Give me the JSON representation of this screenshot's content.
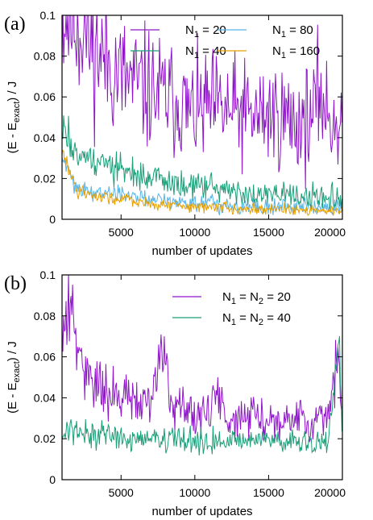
{
  "chart_data": [
    {
      "type": "line",
      "panel_label": "(a)",
      "xlabel": "number of updates",
      "ylabel": "(E - E_exact) / J",
      "ylabel_parts": {
        "pre": "(E - E",
        "sub": "exact",
        "post": ") / J"
      },
      "xlim": [
        1000,
        20000
      ],
      "ylim": [
        0,
        0.1
      ],
      "xticks": [
        5000,
        10000,
        15000,
        20000
      ],
      "xtick_labels": [
        "5000",
        "10000",
        "15000",
        "20000"
      ],
      "yticks": [
        0,
        0.02,
        0.04,
        0.06,
        0.08,
        0.1
      ],
      "ytick_labels": [
        "0",
        "0.02",
        "0.04",
        "0.06",
        "0.08",
        "0.1"
      ],
      "legend_position": "top-right, two columns",
      "series": [
        {
          "name": "N1 = 20",
          "label_parts": {
            "pre": "N",
            "sub": "1",
            "post": " = 20"
          },
          "color": "#8f16c8",
          "x": [
            1000,
            1500,
            2000,
            2500,
            3000,
            3500,
            4000,
            5000,
            6000,
            7000,
            8000,
            9000,
            9500,
            10000,
            11000,
            12000,
            13000,
            14000,
            15000,
            16000,
            17000,
            18000,
            18500,
            19000,
            20000
          ],
          "y": [
            0.1,
            0.1,
            0.097,
            0.093,
            0.085,
            0.082,
            0.078,
            0.07,
            0.066,
            0.063,
            0.06,
            0.058,
            0.053,
            0.052,
            0.055,
            0.053,
            0.052,
            0.05,
            0.052,
            0.05,
            0.047,
            0.05,
            0.064,
            0.05,
            0.048
          ]
        },
        {
          "name": "N1 = 80",
          "label_parts": {
            "pre": "N",
            "sub": "1",
            "post": " = 80"
          },
          "color": "#56b4e9",
          "x": [
            1000,
            2000,
            3000,
            4000,
            5000,
            6000,
            7000,
            8000,
            9000,
            10000,
            11000,
            12000,
            13000,
            14000,
            15000,
            16000,
            17000,
            18000,
            19000,
            20000
          ],
          "y": [
            0.03,
            0.016,
            0.014,
            0.013,
            0.012,
            0.011,
            0.01,
            0.009,
            0.009,
            0.008,
            0.008,
            0.007,
            0.007,
            0.007,
            0.006,
            0.006,
            0.006,
            0.006,
            0.006,
            0.006
          ]
        },
        {
          "name": "N1 = 40",
          "label_parts": {
            "pre": "N",
            "sub": "1",
            "post": " = 40"
          },
          "color": "#1a9e77",
          "x": [
            1000,
            1500,
            2000,
            3000,
            4000,
            5000,
            6000,
            7000,
            8000,
            9000,
            10000,
            11000,
            12000,
            13000,
            14000,
            15000,
            16000,
            17000,
            18000,
            19000,
            20000
          ],
          "y": [
            0.045,
            0.038,
            0.035,
            0.03,
            0.027,
            0.024,
            0.021,
            0.02,
            0.018,
            0.017,
            0.016,
            0.015,
            0.014,
            0.013,
            0.012,
            0.012,
            0.011,
            0.011,
            0.01,
            0.01,
            0.009
          ]
        },
        {
          "name": "N1 = 160",
          "label_parts": {
            "pre": "N",
            "sub": "1",
            "post": " = 160"
          },
          "color": "#e69f00",
          "x": [
            1000,
            2000,
            3000,
            4000,
            5000,
            6000,
            7000,
            8000,
            9000,
            10000,
            11000,
            12000,
            13000,
            14000,
            15000,
            16000,
            17000,
            18000,
            19000,
            20000
          ],
          "y": [
            0.034,
            0.014,
            0.012,
            0.011,
            0.01,
            0.009,
            0.008,
            0.007,
            0.007,
            0.006,
            0.006,
            0.006,
            0.005,
            0.005,
            0.005,
            0.005,
            0.005,
            0.004,
            0.004,
            0.004
          ]
        }
      ]
    },
    {
      "type": "line",
      "panel_label": "(b)",
      "xlabel": "number of updates",
      "ylabel": "(E - E_exact) / J",
      "ylabel_parts": {
        "pre": "(E - E",
        "sub": "exact",
        "post": ") / J"
      },
      "xlim": [
        1000,
        20000
      ],
      "ylim": [
        0,
        0.1
      ],
      "xticks": [
        5000,
        10000,
        15000,
        20000
      ],
      "xtick_labels": [
        "5000",
        "10000",
        "15000",
        "20000"
      ],
      "yticks": [
        0,
        0.02,
        0.04,
        0.06,
        0.08,
        0.1
      ],
      "ytick_labels": [
        "0",
        "0.02",
        "0.04",
        "0.06",
        "0.08",
        "0.1"
      ],
      "legend_position": "top-right",
      "series": [
        {
          "name": "N1 = N2 = 20",
          "label_parts": {
            "pre": "N",
            "sub": "1",
            "mid": " = N",
            "sub2": "2",
            "post": " = 20"
          },
          "color": "#8f16c8",
          "x": [
            1000,
            1300,
            1700,
            2000,
            2500,
            3000,
            3500,
            4000,
            5000,
            6000,
            7000,
            7900,
            8500,
            9000,
            10000,
            11000,
            11500,
            12000,
            13000,
            14000,
            15000,
            16000,
            17000,
            18000,
            19000,
            19700,
            20000
          ],
          "y": [
            0.072,
            0.08,
            0.088,
            0.06,
            0.056,
            0.05,
            0.045,
            0.042,
            0.04,
            0.038,
            0.036,
            0.068,
            0.034,
            0.033,
            0.032,
            0.031,
            0.045,
            0.031,
            0.03,
            0.031,
            0.03,
            0.03,
            0.03,
            0.029,
            0.029,
            0.06,
            0.027
          ]
        },
        {
          "name": "N1 = N2 = 40",
          "label_parts": {
            "pre": "N",
            "sub": "1",
            "mid": " = N",
            "sub2": "2",
            "post": " = 40"
          },
          "color": "#1a9e77",
          "x": [
            1000,
            1500,
            2000,
            3000,
            4000,
            5000,
            6000,
            7000,
            8000,
            9000,
            10000,
            11000,
            12000,
            13000,
            14000,
            15000,
            16000,
            17000,
            18000,
            19000,
            19800,
            20000
          ],
          "y": [
            0.02,
            0.027,
            0.024,
            0.022,
            0.021,
            0.021,
            0.02,
            0.02,
            0.02,
            0.02,
            0.019,
            0.019,
            0.019,
            0.019,
            0.019,
            0.019,
            0.019,
            0.019,
            0.018,
            0.018,
            0.069,
            0.016
          ]
        }
      ]
    }
  ]
}
